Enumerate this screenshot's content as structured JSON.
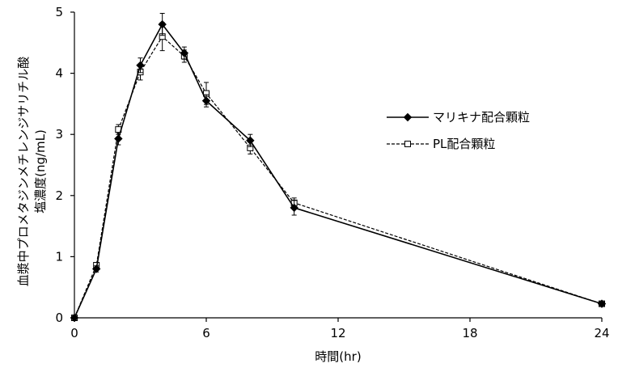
{
  "chart_data": {
    "type": "line",
    "title": "",
    "xlabel": "時間(hr)",
    "ylabel_line1": "血漿中プロメタジンメチレンジサリチル酸",
    "ylabel_line2": "塩濃度(ng/mL)",
    "xlim": [
      0,
      24
    ],
    "ylim": [
      0,
      5
    ],
    "xticks": [
      0,
      6,
      12,
      18,
      24
    ],
    "yticks": [
      0,
      1,
      2,
      3,
      4,
      5
    ],
    "grid": false,
    "legend_position": "right",
    "series": [
      {
        "name": "マリキナ配合顆粒",
        "marker": "diamond-filled",
        "line": "solid",
        "color": "#000000",
        "x": [
          0,
          1,
          2,
          3,
          4,
          5,
          6,
          8,
          10,
          24
        ],
        "y": [
          0,
          0.8,
          2.93,
          4.13,
          4.8,
          4.33,
          3.55,
          2.9,
          1.8,
          0.23
        ],
        "err": [
          0,
          0.05,
          0.1,
          0.12,
          0.18,
          0.1,
          0.1,
          0.1,
          0.12,
          0.03
        ]
      },
      {
        "name": "PL配合顆粒",
        "marker": "square-open",
        "line": "dashed",
        "color": "#000000",
        "x": [
          0,
          1,
          2,
          3,
          4,
          5,
          6,
          8,
          10,
          24
        ],
        "y": [
          0,
          0.86,
          3.08,
          4.02,
          4.6,
          4.28,
          3.67,
          2.78,
          1.88,
          0.23
        ],
        "err": [
          0,
          0.04,
          0.08,
          0.13,
          0.23,
          0.1,
          0.18,
          0.1,
          0.08,
          0.03
        ]
      }
    ]
  }
}
